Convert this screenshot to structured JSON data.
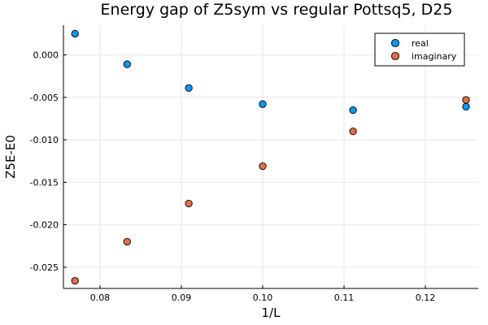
{
  "chart_data": {
    "type": "scatter",
    "title": "Energy gap of Z5sym vs regular Pottsq5, D25",
    "xlabel": "1/L",
    "ylabel": "Z5E-E0",
    "xlim": [
      0.0755,
      0.1265
    ],
    "ylim": [
      -0.0275,
      0.0035
    ],
    "xticks": [
      0.08,
      0.09,
      0.1,
      0.11,
      0.12
    ],
    "xtick_labels": [
      "0.08",
      "0.09",
      "0.10",
      "0.11",
      "0.12"
    ],
    "yticks": [
      0.0,
      -0.005,
      -0.01,
      -0.015,
      -0.02,
      -0.025
    ],
    "ytick_labels": [
      "0.000",
      "-0.005",
      "-0.010",
      "-0.015",
      "-0.020",
      "-0.025"
    ],
    "grid": true,
    "legend_position": "top-right",
    "x": [
      0.07692,
      0.08333,
      0.09091,
      0.1,
      0.11111,
      0.125
    ],
    "series": [
      {
        "name": "real",
        "color": "#009af9",
        "values": [
          0.0025,
          -0.0011,
          -0.0039,
          -0.0058,
          -0.0065,
          -0.0061
        ]
      },
      {
        "name": "imaginary",
        "color": "#e26f46",
        "values": [
          -0.0266,
          -0.022,
          -0.0175,
          -0.0131,
          -0.009,
          -0.0053
        ]
      }
    ]
  }
}
